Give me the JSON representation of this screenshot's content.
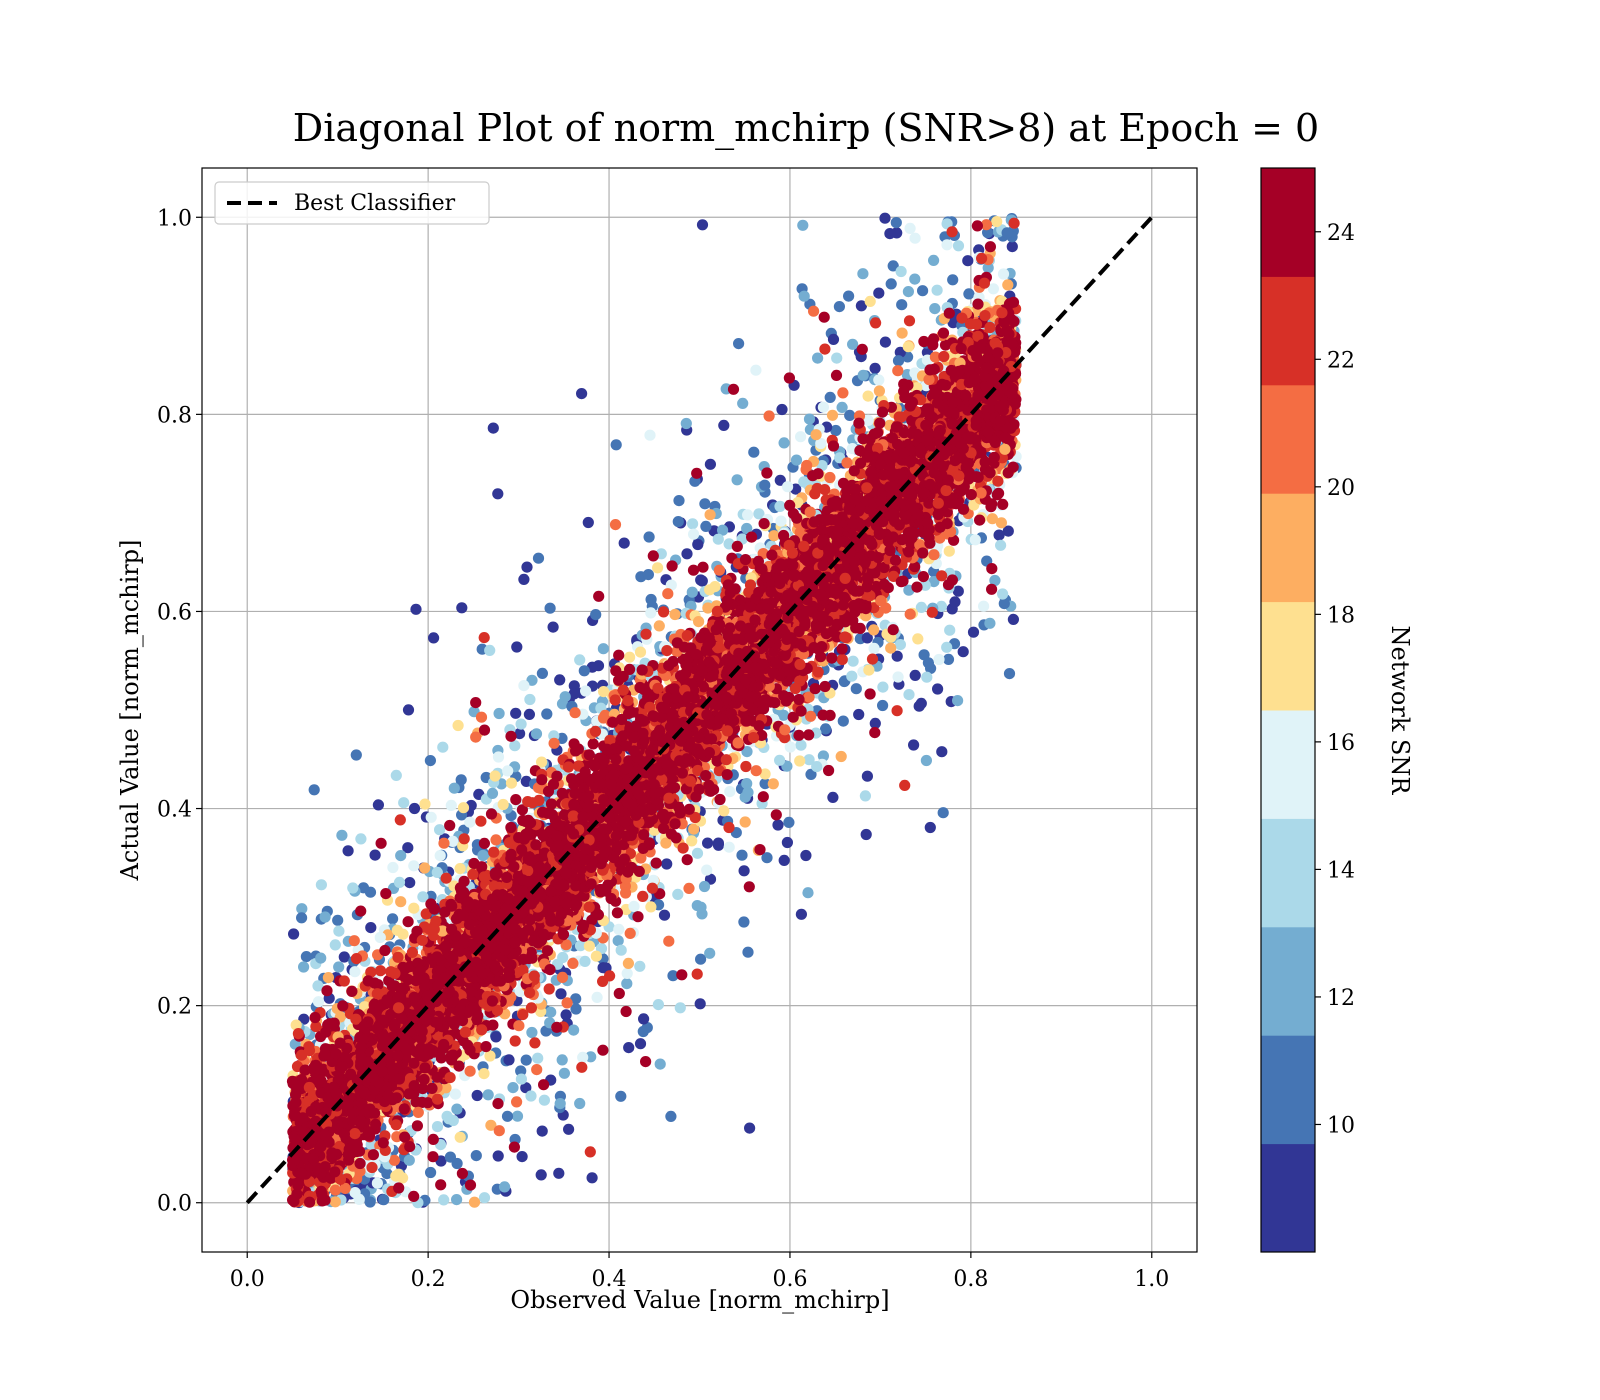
{
  "chart_data": {
    "type": "scatter",
    "title": "Diagonal Plot of norm_mchirp (SNR>8) at Epoch = 0",
    "xlabel": "Observed Value [norm_mchirp]",
    "ylabel": "Actual Value [norm_mchirp]",
    "xlim": [
      -0.05,
      1.05
    ],
    "ylim": [
      -0.05,
      1.05
    ],
    "x_ticks": [
      "0.0",
      "0.2",
      "0.4",
      "0.6",
      "0.8",
      "1.0"
    ],
    "y_ticks": [
      "0.0",
      "0.2",
      "0.4",
      "0.6",
      "0.8",
      "1.0"
    ],
    "grid": true,
    "legend": {
      "placement": "upper-left",
      "entries": [
        "Best Classifier"
      ]
    },
    "reference_line": {
      "name": "Best Classifier",
      "x": [
        0.0,
        1.0
      ],
      "y": [
        0.0,
        1.0
      ],
      "style": "dashed",
      "color": "#000000"
    },
    "colorbar": {
      "label": "Network SNR",
      "range": [
        8,
        25
      ],
      "ticks": [
        "10",
        "12",
        "14",
        "16",
        "18",
        "20",
        "22",
        "24"
      ],
      "colors": [
        "#313695",
        "#4575b4",
        "#74add1",
        "#abd9e9",
        "#e0f3f8",
        "#fee090",
        "#fdae61",
        "#f46d43",
        "#d73027",
        "#a50026"
      ]
    },
    "scatter": {
      "description_of_distribution": "dense cloud of points along the diagonal y=x, x range about 0.05-0.85, spread about ±0.15, high SNR (dark red) concentrated near diagonal, low SNR (blue) scattered farther",
      "x_range": [
        0.05,
        0.85
      ],
      "y_range": [
        0.0,
        1.0
      ]
    }
  }
}
